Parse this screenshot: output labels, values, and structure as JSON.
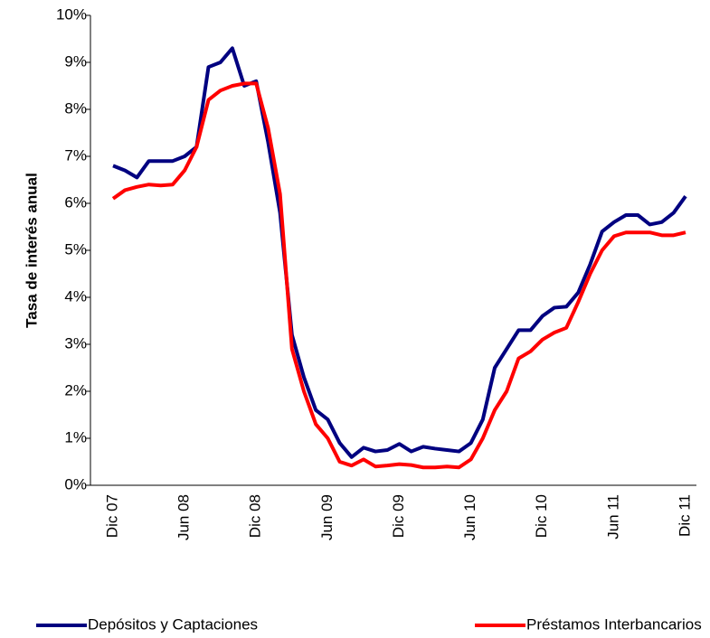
{
  "chart_data": {
    "type": "line",
    "y_label": "Tasa de interés anual",
    "categories": [
      "Dic 07",
      null,
      null,
      null,
      null,
      null,
      "Jun 08",
      null,
      null,
      null,
      null,
      null,
      "Dic 08",
      null,
      null,
      null,
      null,
      null,
      "Jun 09",
      null,
      null,
      null,
      null,
      null,
      "Dic 09",
      null,
      null,
      null,
      null,
      null,
      "Jun 10",
      null,
      null,
      null,
      null,
      null,
      "Dic 10",
      null,
      null,
      null,
      null,
      null,
      "Jun 11",
      null,
      null,
      null,
      null,
      null,
      "Dic 11"
    ],
    "series": [
      {
        "name": "Depósitos y Captaciones",
        "color": "#000080",
        "values": [
          6.8,
          6.7,
          6.55,
          6.9,
          6.9,
          6.9,
          7.0,
          7.2,
          8.9,
          9.0,
          9.3,
          8.5,
          8.6,
          7.3,
          5.8,
          3.2,
          2.3,
          1.6,
          1.4,
          0.9,
          0.6,
          0.8,
          0.72,
          0.75,
          0.88,
          0.72,
          0.82,
          0.78,
          0.75,
          0.72,
          0.9,
          1.4,
          2.5,
          2.9,
          3.3,
          3.3,
          3.6,
          3.78,
          3.8,
          4.1,
          4.7,
          5.4,
          5.6,
          5.75,
          5.75,
          5.55,
          5.6,
          5.8,
          6.15
        ]
      },
      {
        "name": "Préstamos Interbancarios",
        "color": "#ff0000",
        "values": [
          6.1,
          6.28,
          6.35,
          6.4,
          6.38,
          6.4,
          6.7,
          7.2,
          8.2,
          8.4,
          8.5,
          8.55,
          8.55,
          7.6,
          6.2,
          2.9,
          2.0,
          1.3,
          1.0,
          0.5,
          0.42,
          0.55,
          0.4,
          0.42,
          0.45,
          0.43,
          0.38,
          0.38,
          0.4,
          0.38,
          0.55,
          1.0,
          1.6,
          2.0,
          2.7,
          2.85,
          3.1,
          3.25,
          3.35,
          3.9,
          4.5,
          5.0,
          5.3,
          5.38,
          5.38,
          5.38,
          5.32,
          5.32,
          5.38
        ]
      }
    ],
    "ylim": [
      0,
      10
    ],
    "yticks": [
      {
        "value": 0,
        "label": "0%"
      },
      {
        "value": 1,
        "label": "1%"
      },
      {
        "value": 2,
        "label": "2%"
      },
      {
        "value": 3,
        "label": "3%"
      },
      {
        "value": 4,
        "label": "4%"
      },
      {
        "value": 5,
        "label": "5%"
      },
      {
        "value": 6,
        "label": "6%"
      },
      {
        "value": 7,
        "label": "7%"
      },
      {
        "value": 8,
        "label": "8%"
      },
      {
        "value": 9,
        "label": "9%"
      },
      {
        "value": 10,
        "label": "10%"
      }
    ],
    "grid": false
  }
}
